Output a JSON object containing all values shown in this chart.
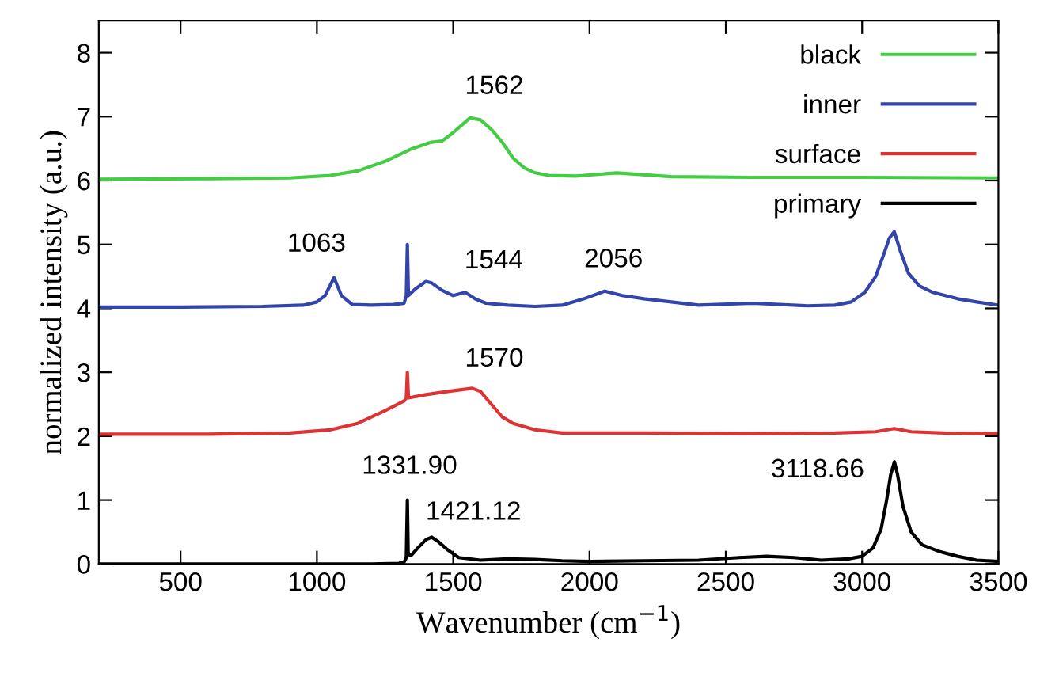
{
  "chart_data": {
    "type": "line",
    "xlabel": "Wavenumber (cm$^{−1}$)",
    "ylabel": "normalized intensity (a.u.)",
    "xlim": [
      200,
      3500
    ],
    "xticks": [
      500,
      1000,
      1500,
      2000,
      2500,
      3000,
      3500
    ],
    "ylim": [
      0,
      8.5
    ],
    "yticks": [
      0,
      1,
      2,
      3,
      4,
      5,
      6,
      7,
      8
    ],
    "grid": false,
    "legend": "top right",
    "marker": "none",
    "line_style": "solid",
    "series": [
      {
        "name": "black",
        "color": "#44cc44",
        "x": [
          200,
          600,
          900,
          1050,
          1150,
          1250,
          1350,
          1420,
          1460,
          1500,
          1540,
          1562,
          1600,
          1640,
          1680,
          1720,
          1760,
          1800,
          1850,
          1950,
          2100,
          2300,
          2600,
          3000,
          3500
        ],
        "values": [
          6.02,
          6.03,
          6.04,
          6.08,
          6.15,
          6.3,
          6.5,
          6.6,
          6.62,
          6.75,
          6.9,
          6.98,
          6.95,
          6.8,
          6.6,
          6.35,
          6.2,
          6.12,
          6.08,
          6.07,
          6.12,
          6.06,
          6.05,
          6.05,
          6.04
        ]
      },
      {
        "name": "inner",
        "color": "#3344aa",
        "x": [
          200,
          500,
          800,
          950,
          1000,
          1030,
          1063,
          1090,
          1130,
          1200,
          1280,
          1320,
          1328,
          1331.9,
          1336,
          1360,
          1400,
          1420,
          1460,
          1500,
          1544,
          1580,
          1620,
          1700,
          1800,
          1900,
          1980,
          2056,
          2120,
          2200,
          2400,
          2600,
          2800,
          2900,
          2960,
          3010,
          3050,
          3080,
          3100,
          3118,
          3140,
          3170,
          3210,
          3260,
          3350,
          3420,
          3500
        ],
        "values": [
          4.02,
          4.02,
          4.03,
          4.05,
          4.1,
          4.2,
          4.48,
          4.2,
          4.06,
          4.05,
          4.06,
          4.08,
          4.2,
          5.0,
          4.2,
          4.3,
          4.42,
          4.4,
          4.28,
          4.2,
          4.25,
          4.15,
          4.08,
          4.05,
          4.03,
          4.05,
          4.15,
          4.27,
          4.2,
          4.15,
          4.05,
          4.08,
          4.04,
          4.05,
          4.1,
          4.25,
          4.5,
          4.85,
          5.1,
          5.2,
          4.9,
          4.55,
          4.35,
          4.25,
          4.15,
          4.1,
          4.05
        ]
      },
      {
        "name": "surface",
        "color": "#dd3333",
        "x": [
          200,
          600,
          900,
          1050,
          1150,
          1250,
          1320,
          1328,
          1331.9,
          1336,
          1400,
          1480,
          1570,
          1600,
          1640,
          1680,
          1720,
          1800,
          1900,
          2200,
          2600,
          2900,
          3050,
          3118,
          3180,
          3300,
          3500
        ],
        "values": [
          2.03,
          2.03,
          2.05,
          2.1,
          2.2,
          2.4,
          2.55,
          2.6,
          3.0,
          2.6,
          2.65,
          2.7,
          2.75,
          2.7,
          2.5,
          2.3,
          2.2,
          2.1,
          2.05,
          2.05,
          2.04,
          2.05,
          2.07,
          2.12,
          2.07,
          2.05,
          2.04
        ]
      },
      {
        "name": "primary",
        "color": "#000000",
        "x": [
          200,
          400,
          600,
          800,
          1000,
          1200,
          1300,
          1320,
          1328,
          1331.9,
          1335,
          1345,
          1370,
          1400,
          1421.12,
          1445,
          1480,
          1520,
          1600,
          1700,
          1800,
          1900,
          2000,
          2200,
          2400,
          2550,
          2650,
          2750,
          2850,
          2950,
          3000,
          3040,
          3070,
          3090,
          3105,
          3118.66,
          3130,
          3150,
          3180,
          3220,
          3280,
          3350,
          3420,
          3500
        ],
        "values": [
          0,
          0,
          0,
          0,
          0,
          0,
          0.01,
          0.03,
          0.1,
          1.0,
          0.15,
          0.13,
          0.25,
          0.38,
          0.42,
          0.35,
          0.22,
          0.1,
          0.06,
          0.08,
          0.07,
          0.05,
          0.04,
          0.05,
          0.06,
          0.1,
          0.12,
          0.1,
          0.06,
          0.08,
          0.12,
          0.25,
          0.55,
          1.0,
          1.4,
          1.6,
          1.4,
          0.9,
          0.5,
          0.3,
          0.2,
          0.12,
          0.06,
          0.04
        ]
      }
    ],
    "annotations": [
      {
        "text": "1562",
        "x": 1562,
        "y": 6.98
      },
      {
        "text": "1063",
        "x": 1063,
        "y": 4.48
      },
      {
        "text": "1544",
        "x": 1544,
        "y": 4.25
      },
      {
        "text": "2056",
        "x": 2056,
        "y": 4.27
      },
      {
        "text": "1570",
        "x": 1570,
        "y": 2.75
      },
      {
        "text": "1331.90",
        "x": 1331.9,
        "y": 1.0
      },
      {
        "text": "1421.12",
        "x": 1421.12,
        "y": 0.42
      },
      {
        "text": "3118.66",
        "x": 3118.66,
        "y": 1.6
      }
    ]
  }
}
